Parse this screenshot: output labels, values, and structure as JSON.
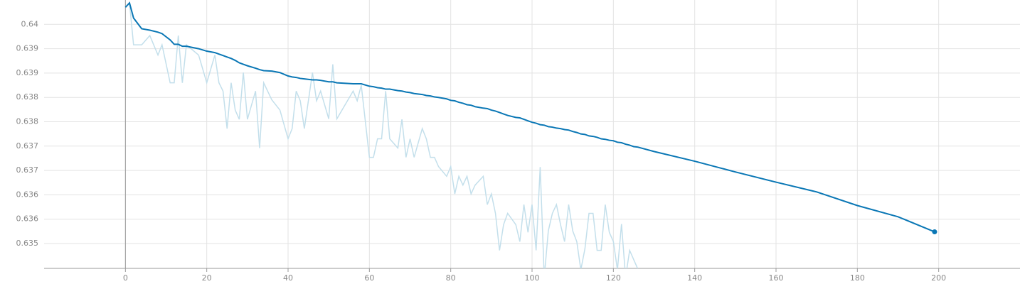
{
  "chart_data": {
    "type": "line",
    "x": [
      0,
      1,
      2,
      4,
      6,
      8,
      9,
      11,
      12,
      13,
      14,
      15,
      18,
      20,
      22,
      23,
      24,
      25,
      26,
      27,
      28,
      29,
      30,
      32,
      33,
      34,
      36,
      38,
      40,
      41,
      42,
      43,
      44,
      46,
      47,
      48,
      50,
      51,
      52,
      56,
      57,
      58,
      60,
      61,
      62,
      63,
      64,
      65,
      67,
      68,
      69,
      70,
      71,
      73,
      74,
      75,
      76,
      77,
      79,
      80,
      81,
      82,
      83,
      84,
      85,
      86,
      88,
      89,
      90,
      91,
      92,
      93,
      94,
      96,
      97,
      98,
      99,
      100,
      101,
      102,
      103,
      104,
      105,
      106,
      107,
      108,
      109,
      110,
      111,
      112,
      113,
      114,
      115,
      116,
      117,
      118,
      119,
      120,
      121,
      122,
      123,
      124,
      125,
      126,
      130,
      140,
      150,
      160,
      170,
      180,
      190,
      199
    ],
    "series": [
      {
        "color": "#c3dfeb",
        "values": [
          0.64035,
          0.64044,
          0.63958,
          0.63958,
          0.63977,
          0.63937,
          0.63958,
          0.6388,
          0.6388,
          0.63977,
          0.6388,
          0.63958,
          0.63937,
          0.6388,
          0.63937,
          0.6388,
          0.63863,
          0.63786,
          0.6388,
          0.63824,
          0.63805,
          0.63901,
          0.63805,
          0.63863,
          0.63746,
          0.6388,
          0.63845,
          0.63824,
          0.63765,
          0.63786,
          0.63863,
          0.63843,
          0.63786,
          0.63901,
          0.63843,
          0.63863,
          0.63806,
          0.63918,
          0.63806,
          0.63863,
          0.63843,
          0.63875,
          0.63727,
          0.63727,
          0.63765,
          0.63765,
          0.63863,
          0.63765,
          0.63746,
          0.63805,
          0.63727,
          0.63765,
          0.63727,
          0.63786,
          0.63765,
          0.63727,
          0.63727,
          0.63708,
          0.63688,
          0.63708,
          0.63652,
          0.63688,
          0.6367,
          0.63688,
          0.63652,
          0.6367,
          0.63688,
          0.6363,
          0.63652,
          0.63612,
          0.63536,
          0.63589,
          0.63612,
          0.63589,
          0.63554,
          0.6363,
          0.63573,
          0.6363,
          0.63536,
          0.63707,
          0.63481,
          0.63576,
          0.63612,
          0.6363,
          0.63589,
          0.63554,
          0.6363,
          0.63576,
          0.63554,
          0.63496,
          0.63539,
          0.63612,
          0.63612,
          0.63536,
          0.63536,
          0.6363,
          0.63573,
          0.63554,
          0.63496,
          0.6359,
          0.63481,
          0.63536,
          0.63517,
          0.63498,
          null,
          null,
          null,
          null,
          null,
          null,
          null,
          null
        ]
      },
      {
        "color": "#0a77b5",
        "values": [
          0.64035,
          0.64044,
          0.64013,
          0.63991,
          0.63988,
          0.63984,
          0.63981,
          0.63968,
          0.63959,
          0.63959,
          0.63955,
          0.63955,
          0.6395,
          0.63945,
          0.63942,
          0.63939,
          0.63936,
          0.63933,
          0.6393,
          0.63926,
          0.63921,
          0.63918,
          0.63915,
          0.6391,
          0.63907,
          0.63905,
          0.63904,
          0.63901,
          0.63894,
          0.63892,
          0.63891,
          0.63889,
          0.63888,
          0.63886,
          0.63886,
          0.63885,
          0.63882,
          0.63882,
          0.6388,
          0.63878,
          0.63878,
          0.63878,
          0.63873,
          0.63872,
          0.6387,
          0.63869,
          0.63867,
          0.63867,
          0.63864,
          0.63863,
          0.63861,
          0.6386,
          0.63858,
          0.63856,
          0.63854,
          0.63853,
          0.63851,
          0.6385,
          0.63847,
          0.63844,
          0.63843,
          0.6384,
          0.63838,
          0.63835,
          0.63834,
          0.63831,
          0.63828,
          0.63827,
          0.63824,
          0.63822,
          0.63819,
          0.63816,
          0.63813,
          0.63809,
          0.63808,
          0.63805,
          0.63802,
          0.63799,
          0.63797,
          0.63794,
          0.63793,
          0.6379,
          0.63789,
          0.63787,
          0.63786,
          0.63784,
          0.63783,
          0.6378,
          0.63778,
          0.63775,
          0.63774,
          0.63771,
          0.6377,
          0.63768,
          0.63765,
          0.63764,
          0.63762,
          0.63761,
          0.63758,
          0.63757,
          0.63754,
          0.63752,
          0.63749,
          0.63748,
          0.63739,
          0.63719,
          0.63697,
          0.63676,
          0.63656,
          0.63628,
          0.63605,
          0.63574
        ]
      }
    ],
    "xlim": [
      -20,
      220
    ],
    "xticks": [
      0,
      20,
      40,
      60,
      80,
      100,
      120,
      140,
      160,
      180,
      200
    ],
    "ylim": [
      0.63499,
      0.6405
    ],
    "yticks": [
      {
        "value": 0.64,
        "label": "0.64"
      },
      {
        "value": 0.6395,
        "label": "0.639"
      },
      {
        "value": 0.639,
        "label": "0.639"
      },
      {
        "value": 0.6385,
        "label": "0.638"
      },
      {
        "value": 0.638,
        "label": "0.638"
      },
      {
        "value": 0.6375,
        "label": "0.637"
      },
      {
        "value": 0.637,
        "label": "0.637"
      },
      {
        "value": 0.6365,
        "label": "0.636"
      },
      {
        "value": 0.636,
        "label": "0.636"
      },
      {
        "value": 0.6355,
        "label": "0.635"
      }
    ],
    "grid": true
  }
}
